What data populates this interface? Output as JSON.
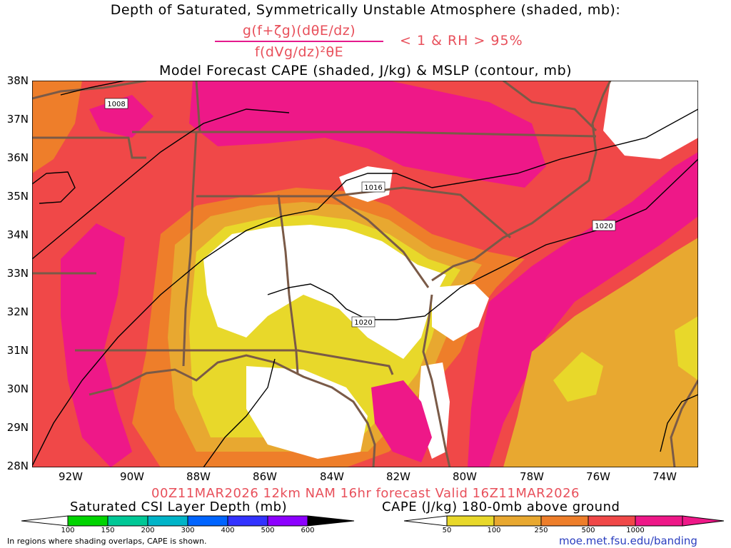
{
  "titles": {
    "line1": "Depth of Saturated, Symmetrically Unstable Atmosphere (shaded, mb):",
    "numerator": "g(f+ζg)(dθE/dz)",
    "denominator": "f(dVg/dz)²θE",
    "criteria": "< 1 & RH > 95%",
    "line3": "Model Forecast CAPE (shaded, J/kg) & MSLP (contour, mb)",
    "valid": "00Z11MAR2026 12km NAM 16hr forecast Valid 16Z11MAR2026"
  },
  "lat_labels": [
    "38N",
    "37N",
    "36N",
    "35N",
    "34N",
    "33N",
    "32N",
    "31N",
    "30N",
    "29N",
    "28N"
  ],
  "lon_labels": [
    "92W",
    "90W",
    "88W",
    "86W",
    "84W",
    "82W",
    "80W",
    "78W",
    "76W",
    "74W"
  ],
  "contours": {
    "labels": [
      "1008",
      "1016",
      "1020",
      "1020"
    ]
  },
  "colorbars": {
    "csi": {
      "label": "Saturated CSI Layer Depth (mb)",
      "ticks": [
        "100",
        "150",
        "200",
        "300",
        "400",
        "500",
        "600"
      ],
      "colors": [
        "#00d400",
        "#00c896",
        "#00b4c8",
        "#0064ff",
        "#3232ff",
        "#8c00ff"
      ]
    },
    "cape": {
      "label": "CAPE (J/kg) 180-0mb above ground",
      "ticks": [
        "50",
        "100",
        "250",
        "500",
        "1000"
      ],
      "colors": [
        "#e8d82a",
        "#e8a830",
        "#ee7e2a",
        "#f04848",
        "#ee1888"
      ]
    }
  },
  "footer": {
    "note": "In regions where shading overlaps, CAPE is shown.",
    "url": "moe.met.fsu.edu/banding"
  }
}
